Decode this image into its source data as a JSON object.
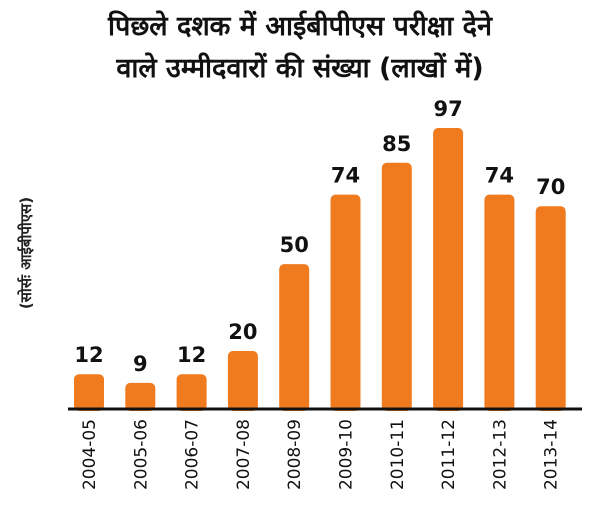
{
  "chart_data": {
    "type": "bar",
    "title": [
      "पिछले दशक में आईबीपीएस परीक्षा देने",
      "वाले उम्मीदवारों की संख्या (लाखों में)"
    ],
    "source": "(सोर्सः आईबीपीएस)",
    "categories": [
      "2004-05",
      "2005-06",
      "2006-07",
      "2007-08",
      "2008-09",
      "2009-10",
      "2010-11",
      "2011-12",
      "2012-13",
      "2013-14"
    ],
    "values": [
      12,
      9,
      12,
      20,
      50,
      74,
      85,
      97,
      74,
      70
    ],
    "value_labels": [
      "12",
      "9",
      "12",
      "20",
      "50",
      "74",
      "85",
      "97",
      "74",
      "70"
    ],
    "bar_color": "#f07a1e",
    "grid": false,
    "legend": "none"
  }
}
